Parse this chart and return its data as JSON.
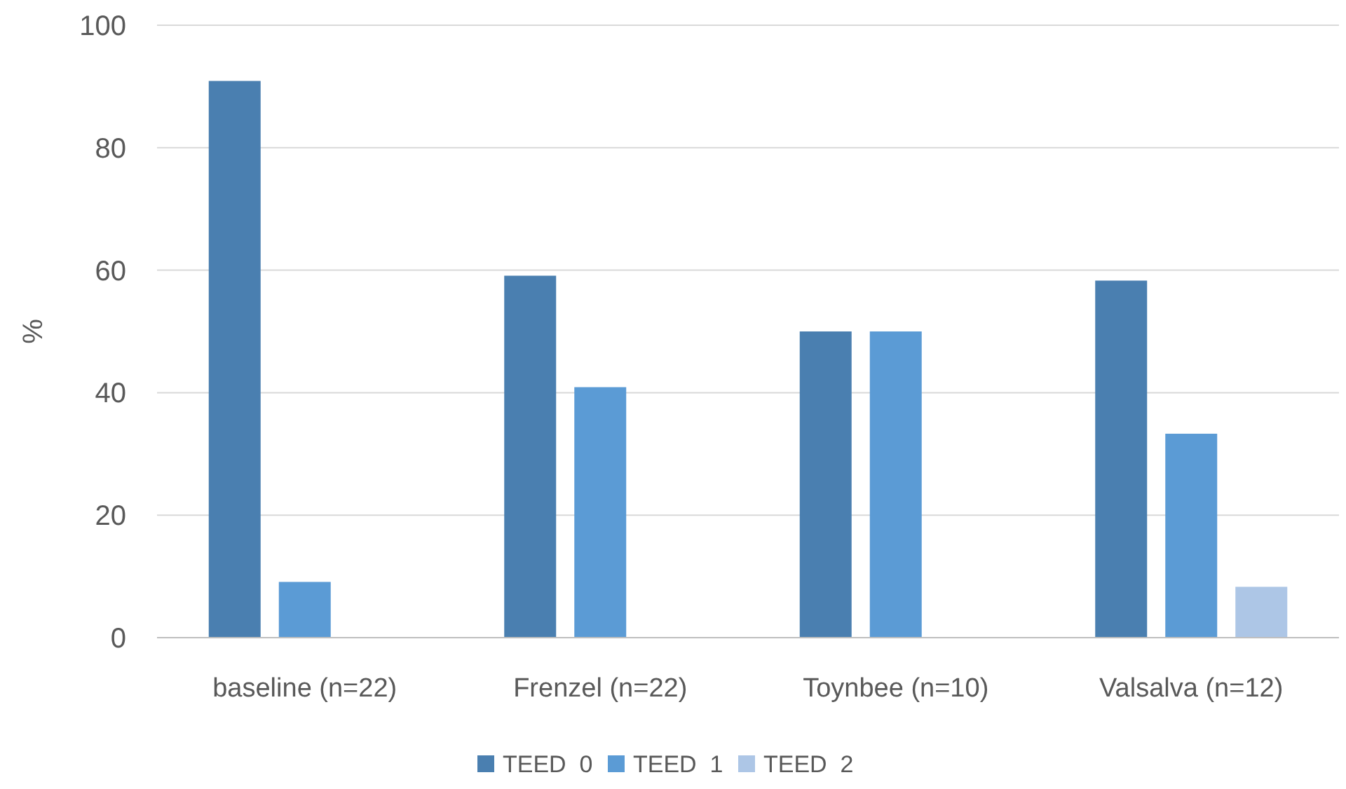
{
  "chart_data": {
    "type": "bar",
    "ylabel": "%",
    "categories": [
      "baseline (n=22)",
      "Frenzel (n=22)",
      "Toynbee (n=10)",
      "Valsalva (n=12)"
    ],
    "series": [
      {
        "name": "TEED  0",
        "color": "#4a7fb0",
        "values": [
          90.9,
          59.1,
          50,
          58.3
        ]
      },
      {
        "name": "TEED  1",
        "color": "#5b9bd5",
        "values": [
          9.1,
          40.9,
          50,
          33.3
        ]
      },
      {
        "name": "TEED  2",
        "color": "#adc6e6",
        "values": [
          null,
          null,
          null,
          8.3
        ]
      }
    ],
    "ylim": [
      0,
      100
    ],
    "yticks": [
      0,
      20,
      40,
      60,
      80,
      100
    ],
    "grid": "y",
    "legend": "bottom"
  }
}
